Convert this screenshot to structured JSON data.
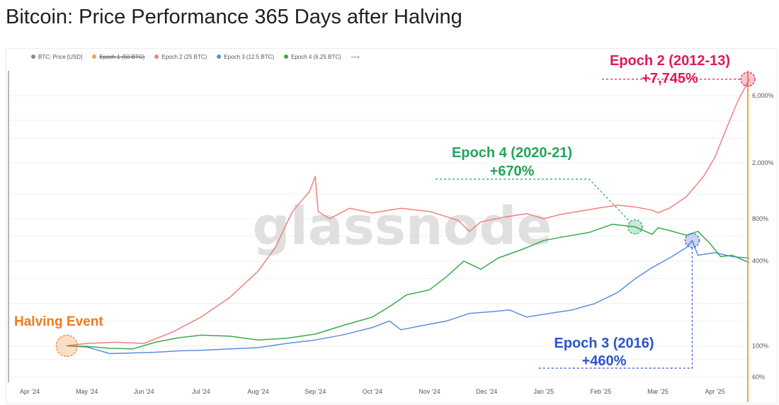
{
  "page": {
    "title": "Bitcoin: Price Performance 365 Days after Halving"
  },
  "legend": {
    "items": [
      {
        "label": "BTC: Price [USD]",
        "color": "#8a8a8a",
        "struck": false
      },
      {
        "label": "Epoch 1 (50 BTC)",
        "color": "#f2a53c",
        "struck": true
      },
      {
        "label": "Epoch 2 (25 BTC)",
        "color": "#f08080",
        "struck": false
      },
      {
        "label": "Epoch 3 (12.5 BTC)",
        "color": "#5b8fe0",
        "struck": false
      },
      {
        "label": "Epoch 4 (6.25 BTC)",
        "color": "#3aa94a",
        "struck": false
      }
    ],
    "more": "—›"
  },
  "watermark": "glassnode",
  "annotations": {
    "halving": {
      "label": "Halving Event",
      "color": "#f07a1a"
    },
    "epoch2": {
      "line1": "Epoch 2 (2012-13)",
      "line2": "+7,745%",
      "color": "#e0185a"
    },
    "epoch4": {
      "line1": "Epoch 4 (2020-21)",
      "line2": "+670%",
      "color": "#22a55a"
    },
    "epoch3": {
      "line1": "Epoch 3 (2016)",
      "line2": "+460%",
      "color": "#2b55c8"
    }
  },
  "chart_data": {
    "type": "line",
    "y_scale": "log",
    "ylim": [
      55,
      9000
    ],
    "x_tick_labels": [
      "Apr '24",
      "May '24",
      "Jun '24",
      "Jul '24",
      "Aug '24",
      "Sep '24",
      "Oct '24",
      "Nov '24",
      "Dec '24",
      "Jan '25",
      "Feb '25",
      "Mar '25",
      "Apr '25"
    ],
    "y_tick_labels": [
      {
        "value": 60,
        "label": "60%"
      },
      {
        "value": 100,
        "label": "100%"
      },
      {
        "value": 400,
        "label": "400%"
      },
      {
        "value": 800,
        "label": "800%"
      },
      {
        "value": 2000,
        "label": "2,000%"
      },
      {
        "value": 6000,
        "label": "6,000%"
      }
    ],
    "x_domain": [
      0,
      12.5
    ],
    "series": [
      {
        "name": "Epoch 2 (25 BTC)",
        "color": "#f08080",
        "points": [
          [
            0.65,
            100
          ],
          [
            1.0,
            104
          ],
          [
            1.5,
            106
          ],
          [
            2.0,
            104
          ],
          [
            2.5,
            125
          ],
          [
            3.0,
            160
          ],
          [
            3.5,
            220
          ],
          [
            4.0,
            340
          ],
          [
            4.3,
            500
          ],
          [
            4.6,
            900
          ],
          [
            4.9,
            1250
          ],
          [
            5.0,
            1600
          ],
          [
            5.05,
            900
          ],
          [
            5.25,
            800
          ],
          [
            5.6,
            950
          ],
          [
            6.0,
            880
          ],
          [
            6.5,
            950
          ],
          [
            7.0,
            900
          ],
          [
            7.5,
            780
          ],
          [
            7.7,
            650
          ],
          [
            7.9,
            760
          ],
          [
            8.3,
            820
          ],
          [
            8.7,
            870
          ],
          [
            9.0,
            800
          ],
          [
            9.3,
            860
          ],
          [
            9.6,
            900
          ],
          [
            10.0,
            960
          ],
          [
            10.3,
            1000
          ],
          [
            10.6,
            970
          ],
          [
            10.9,
            920
          ],
          [
            11.0,
            880
          ],
          [
            11.2,
            950
          ],
          [
            11.5,
            1150
          ],
          [
            11.8,
            1600
          ],
          [
            12.0,
            2200
          ],
          [
            12.2,
            3500
          ],
          [
            12.4,
            5500
          ],
          [
            12.6,
            7845
          ]
        ]
      },
      {
        "name": "Epoch 3 (12.5 BTC)",
        "color": "#5b8fe0",
        "points": [
          [
            0.65,
            100
          ],
          [
            1.0,
            98
          ],
          [
            1.4,
            88
          ],
          [
            1.8,
            89
          ],
          [
            2.2,
            90
          ],
          [
            2.6,
            92
          ],
          [
            3.0,
            93
          ],
          [
            3.5,
            95
          ],
          [
            4.0,
            97
          ],
          [
            4.5,
            104
          ],
          [
            5.0,
            110
          ],
          [
            5.5,
            120
          ],
          [
            6.0,
            135
          ],
          [
            6.3,
            150
          ],
          [
            6.5,
            130
          ],
          [
            6.9,
            140
          ],
          [
            7.3,
            150
          ],
          [
            7.7,
            170
          ],
          [
            8.1,
            175
          ],
          [
            8.4,
            180
          ],
          [
            8.7,
            160
          ],
          [
            9.1,
            170
          ],
          [
            9.5,
            180
          ],
          [
            9.9,
            200
          ],
          [
            10.3,
            240
          ],
          [
            10.6,
            300
          ],
          [
            10.9,
            360
          ],
          [
            11.2,
            420
          ],
          [
            11.5,
            500
          ],
          [
            11.6,
            560
          ],
          [
            11.7,
            440
          ],
          [
            12.0,
            460
          ],
          [
            12.3,
            430
          ],
          [
            12.6,
            420
          ]
        ]
      },
      {
        "name": "Epoch 4 (6.25 BTC)",
        "color": "#3aa94a",
        "points": [
          [
            0.65,
            100
          ],
          [
            1.0,
            99
          ],
          [
            1.4,
            96
          ],
          [
            1.8,
            95
          ],
          [
            2.2,
            106
          ],
          [
            2.6,
            114
          ],
          [
            3.0,
            119
          ],
          [
            3.5,
            117
          ],
          [
            4.0,
            110
          ],
          [
            4.5,
            113
          ],
          [
            5.0,
            121
          ],
          [
            5.5,
            140
          ],
          [
            6.0,
            160
          ],
          [
            6.3,
            190
          ],
          [
            6.6,
            230
          ],
          [
            7.0,
            250
          ],
          [
            7.3,
            310
          ],
          [
            7.6,
            400
          ],
          [
            7.9,
            350
          ],
          [
            8.2,
            420
          ],
          [
            8.6,
            480
          ],
          [
            9.0,
            560
          ],
          [
            9.4,
            600
          ],
          [
            9.8,
            640
          ],
          [
            10.2,
            730
          ],
          [
            10.6,
            700
          ],
          [
            10.9,
            620
          ],
          [
            11.0,
            690
          ],
          [
            11.2,
            660
          ],
          [
            11.5,
            610
          ],
          [
            11.7,
            650
          ],
          [
            11.9,
            540
          ],
          [
            12.1,
            430
          ],
          [
            12.3,
            440
          ],
          [
            12.6,
            390
          ]
        ]
      }
    ]
  }
}
